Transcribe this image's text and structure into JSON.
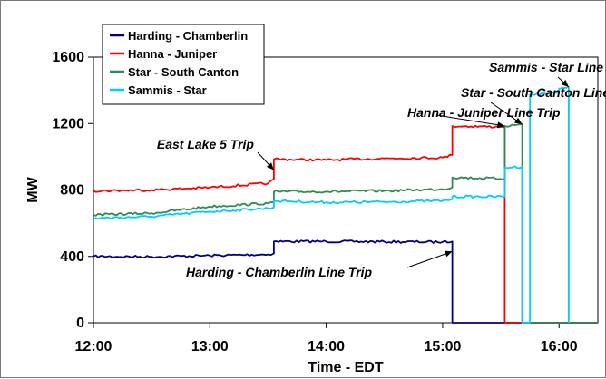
{
  "chart_data": {
    "type": "line",
    "title": "",
    "xlabel": "Time - EDT",
    "ylabel": "MW",
    "x_range": [
      "12:00",
      "16:20"
    ],
    "ylim": [
      0,
      1600
    ],
    "x_ticks": [
      "12:00",
      "13:00",
      "14:00",
      "15:00",
      "16:00"
    ],
    "y_ticks": [
      "0",
      "400",
      "800",
      "1200",
      "1600"
    ],
    "grid": false,
    "legend_position": "top-left",
    "series": [
      {
        "name": "Harding - Chamberlin",
        "color": "#000080",
        "points": [
          [
            "12:00",
            400
          ],
          [
            "12:30",
            398
          ],
          [
            "13:00",
            405
          ],
          [
            "13:30",
            412
          ],
          [
            "13:33",
            418
          ],
          [
            "13:33",
            490
          ],
          [
            "14:00",
            490
          ],
          [
            "14:30",
            488
          ],
          [
            "15:00",
            487
          ],
          [
            "15:05",
            490
          ],
          [
            "15:05",
            0
          ],
          [
            "16:20",
            0
          ]
        ]
      },
      {
        "name": "Hanna - Juniper",
        "color": "#ff0000",
        "points": [
          [
            "12:00",
            795
          ],
          [
            "12:30",
            800
          ],
          [
            "13:00",
            815
          ],
          [
            "13:30",
            840
          ],
          [
            "13:33",
            865
          ],
          [
            "13:33",
            985
          ],
          [
            "14:00",
            980
          ],
          [
            "14:30",
            990
          ],
          [
            "15:00",
            995
          ],
          [
            "15:05",
            1010
          ],
          [
            "15:05",
            1185
          ],
          [
            "15:30",
            1180
          ],
          [
            "15:32",
            1178
          ],
          [
            "15:32",
            0
          ],
          [
            "16:20",
            0
          ]
        ]
      },
      {
        "name": "Star - South Canton",
        "color": "#2e8b57",
        "points": [
          [
            "12:00",
            650
          ],
          [
            "12:30",
            660
          ],
          [
            "13:00",
            700
          ],
          [
            "13:30",
            720
          ],
          [
            "13:33",
            725
          ],
          [
            "13:33",
            790
          ],
          [
            "14:00",
            790
          ],
          [
            "14:30",
            795
          ],
          [
            "15:00",
            805
          ],
          [
            "15:05",
            815
          ],
          [
            "15:05",
            875
          ],
          [
            "15:32",
            868
          ],
          [
            "15:32",
            1185
          ],
          [
            "15:41",
            1195
          ],
          [
            "15:41",
            0
          ],
          [
            "16:20",
            0
          ]
        ]
      },
      {
        "name": "Sammis - Star",
        "color": "#00ccff",
        "points": [
          [
            "12:00",
            630
          ],
          [
            "12:30",
            640
          ],
          [
            "13:00",
            670
          ],
          [
            "13:30",
            690
          ],
          [
            "13:33",
            695
          ],
          [
            "13:33",
            735
          ],
          [
            "14:00",
            725
          ],
          [
            "14:30",
            728
          ],
          [
            "15:00",
            735
          ],
          [
            "15:05",
            745
          ],
          [
            "15:05",
            760
          ],
          [
            "15:32",
            760
          ],
          [
            "15:32",
            935
          ],
          [
            "15:41",
            940
          ],
          [
            "15:41",
            0
          ],
          [
            "15:45",
            0
          ],
          [
            "15:45",
            1375
          ],
          [
            "15:55",
            1380
          ],
          [
            "16:00",
            1395
          ],
          [
            "16:00",
            1410
          ],
          [
            "16:05",
            1420
          ],
          [
            "16:05",
            0
          ]
        ]
      }
    ],
    "annotations": [
      {
        "text": "Sammis - Star Line Trip",
        "target": [
          "16:05",
          1420
        ]
      },
      {
        "text": "Star - South Canton Line Trip",
        "target": [
          "15:41",
          1195
        ]
      },
      {
        "text": "Hanna - Juniper Line Trip",
        "target": [
          "15:32",
          1185
        ]
      },
      {
        "text": "East Lake 5 Trip",
        "target": [
          "13:33",
          920
        ]
      },
      {
        "text": "Harding - Chamberlin Line Trip",
        "target": [
          "15:05",
          430
        ]
      }
    ]
  }
}
